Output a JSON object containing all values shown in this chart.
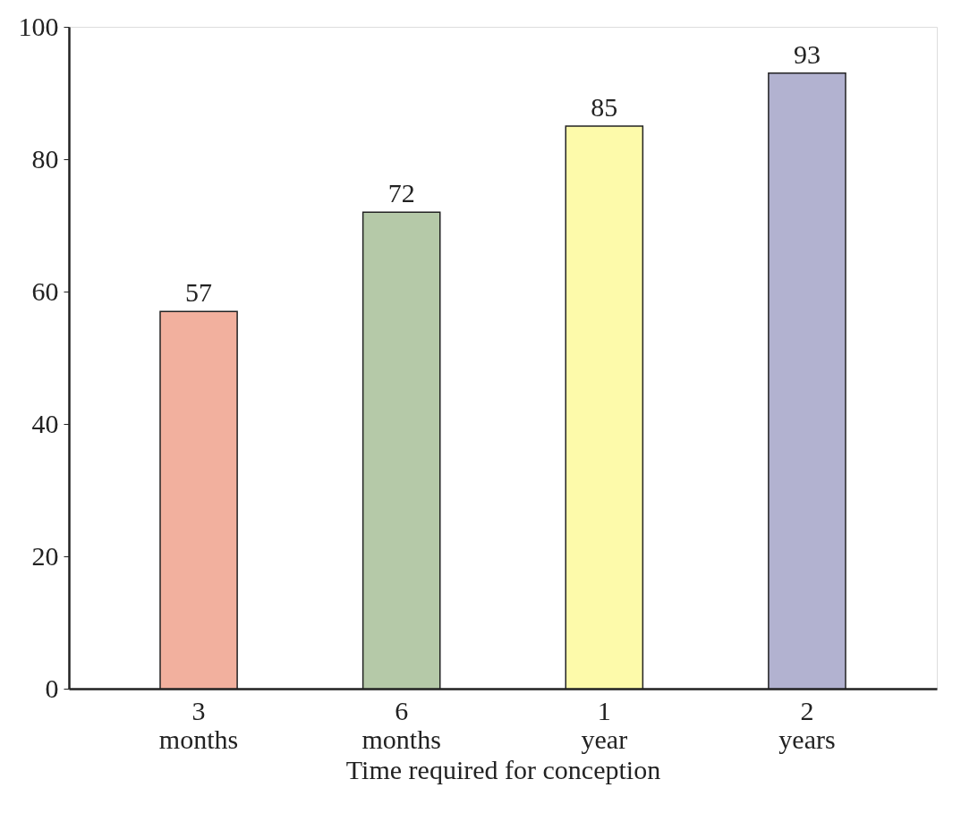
{
  "chart_data": {
    "type": "bar",
    "xlabel": "Time required for conception",
    "categories": [
      "3 months",
      "6 months",
      "1 year",
      "2 years"
    ],
    "values": [
      57,
      72,
      85,
      93
    ],
    "colors": [
      "#f2b09e",
      "#b5c9a8",
      "#fdfaaa",
      "#b2b2d0"
    ],
    "ylim": [
      0,
      100
    ],
    "yticks": [
      0,
      20,
      40,
      60,
      80,
      100
    ],
    "data_labels": true,
    "grid": false
  }
}
